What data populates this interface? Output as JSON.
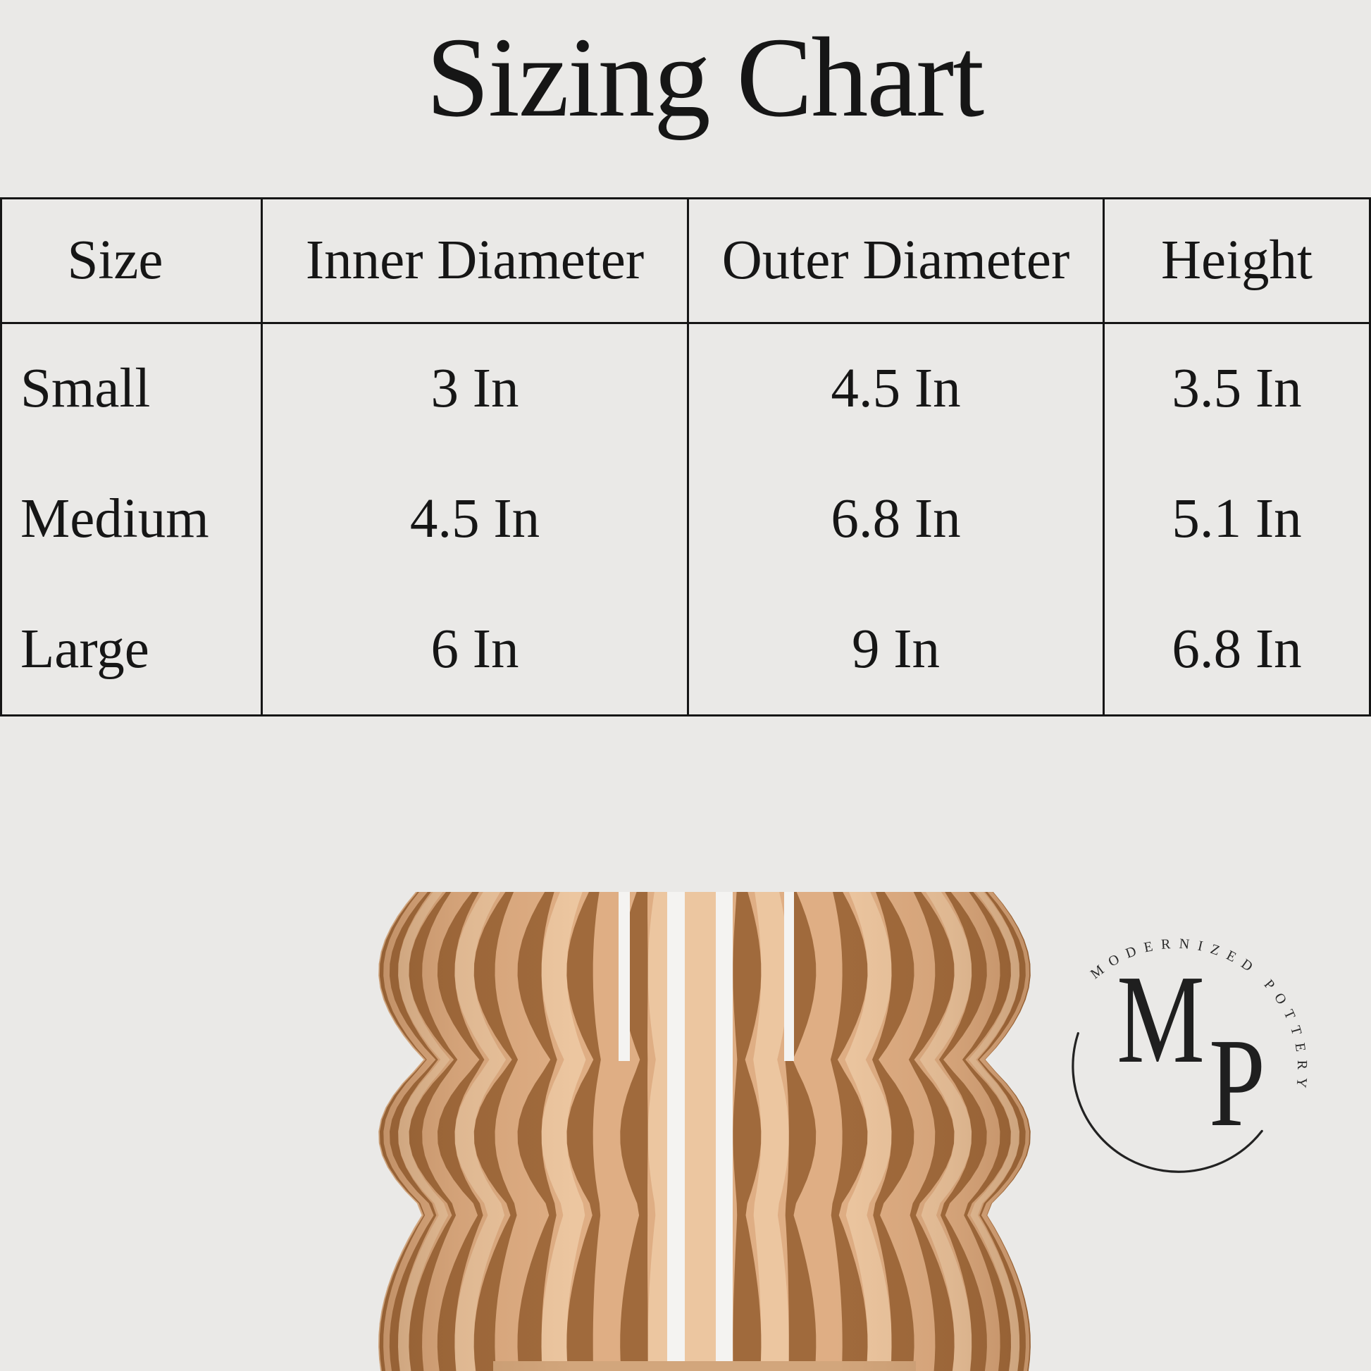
{
  "title": "Sizing Chart",
  "table": {
    "headers": [
      "Size",
      "Inner Diameter",
      "Outer Diameter",
      "Height"
    ],
    "rows": [
      {
        "size": "Small",
        "inner": "3 In",
        "outer": "4.5 In",
        "height": "3.5 In"
      },
      {
        "size": "Medium",
        "inner": "4.5 In",
        "outer": "6.8 In",
        "height": "5.1 In"
      },
      {
        "size": "Large",
        "inner": "6 In",
        "outer": "9 In",
        "height": "6.8 In"
      }
    ]
  },
  "logo": {
    "arc_text": "MODERNIZED POTTERY",
    "monogram": {
      "m": "M",
      "p": "P"
    }
  },
  "planter": {
    "colors": {
      "light": "#dfae84",
      "light_alt": "#ecc6a0",
      "dark": "#a06a3c",
      "slit": "#f4f3f1",
      "base": "#d2a67c",
      "edge_shade": "#7d4c24"
    }
  },
  "colors": {
    "background": "#eae9e7",
    "line": "#161616",
    "text": "#161616"
  }
}
